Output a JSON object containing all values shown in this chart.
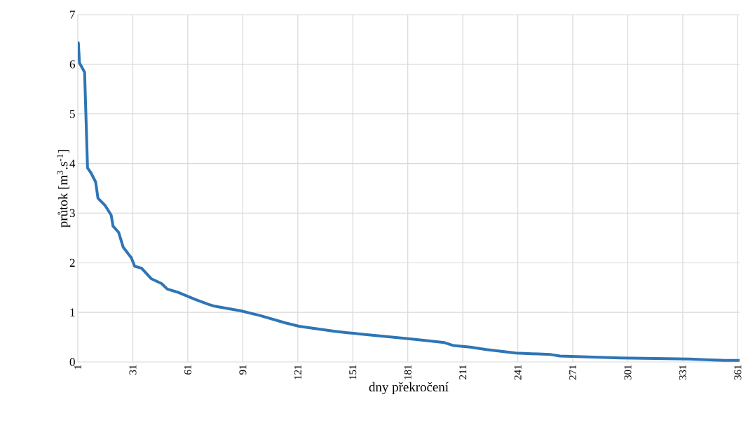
{
  "chart_data": {
    "type": "line",
    "xlabel": "dny překročení",
    "ylabel": "průtok [m$^{3}$.s$^{-1}$]",
    "x": [
      1,
      1.3,
      1.9,
      4.7,
      6.3,
      8.2,
      10.7,
      12,
      15.8,
      19.2,
      20.2,
      23.3,
      25.8,
      30.2,
      32,
      35.8,
      41,
      46.7,
      49.8,
      56,
      65,
      72.5,
      75,
      90,
      100,
      114,
      121.7,
      140.6,
      148,
      178.4,
      186,
      201,
      206,
      215,
      223.8,
      240,
      259,
      264,
      297,
      334.7,
      353.6,
      362
    ],
    "series": [
      {
        "color": "#2e75b6",
        "values": [
          6.43,
          6.43,
          6.03,
          5.84,
          3.91,
          3.81,
          3.63,
          3.3,
          3.16,
          2.96,
          2.74,
          2.61,
          2.31,
          2.1,
          1.93,
          1.89,
          1.68,
          1.58,
          1.47,
          1.4,
          1.26,
          1.16,
          1.13,
          1.03,
          0.94,
          0.79,
          0.72,
          0.62,
          0.59,
          0.48,
          0.45,
          0.39,
          0.33,
          0.3,
          0.25,
          0.18,
          0.15,
          0.12,
          0.08,
          0.06,
          0.03,
          0.03
        ]
      }
    ],
    "xlim": [
      1,
      362
    ],
    "ylim": [
      0,
      7
    ],
    "xticks": [
      1,
      31,
      61,
      91,
      121,
      151,
      181,
      211,
      241,
      271,
      301,
      331,
      361
    ],
    "yticks": [
      0,
      1,
      2,
      3,
      4,
      5,
      6,
      7
    ],
    "grid": true,
    "marker": "none",
    "line_style": "solid"
  }
}
